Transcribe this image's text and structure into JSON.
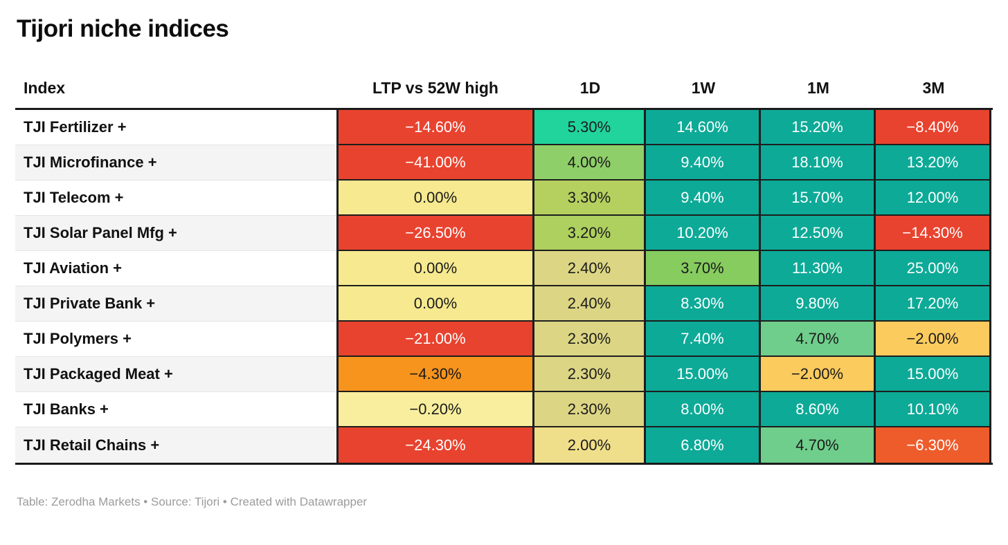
{
  "title": "Tijori niche indices",
  "footer": "Table: Zerodha Markets • Source: Tijori • Created with Datawrapper",
  "colors": {
    "red": "#e8432f",
    "orange_red": "#ee5c2c",
    "orange": "#f7941d",
    "amber": "#fbcb5e",
    "pale_yellow": "#f6e98f",
    "khaki": "#dcd584",
    "yellow_green": "#b5d05f",
    "light_green": "#8ecf69",
    "medium_green": "#6fce8b",
    "emerald": "#20d49c",
    "teal": "#0daa97",
    "dark_text": "#1a1a1a",
    "light_text": "#ffffff"
  },
  "table": {
    "columns": [
      "Index",
      "LTP vs 52W high",
      "1D",
      "1W",
      "1M",
      "3M"
    ],
    "rows": [
      {
        "index": "TJI Fertilizer +",
        "cells": [
          {
            "v": "−14.60%",
            "bg": "#e8432f",
            "fg": "#ffffff"
          },
          {
            "v": "5.30%",
            "bg": "#20d49c",
            "fg": "#1a1a1a"
          },
          {
            "v": "14.60%",
            "bg": "#0daa97",
            "fg": "#ffffff"
          },
          {
            "v": "15.20%",
            "bg": "#0daa97",
            "fg": "#ffffff"
          },
          {
            "v": "−8.40%",
            "bg": "#e8432f",
            "fg": "#ffffff"
          }
        ]
      },
      {
        "index": "TJI Microfinance +",
        "cells": [
          {
            "v": "−41.00%",
            "bg": "#e8432f",
            "fg": "#ffffff"
          },
          {
            "v": "4.00%",
            "bg": "#8ecf69",
            "fg": "#1a1a1a"
          },
          {
            "v": "9.40%",
            "bg": "#0daa97",
            "fg": "#ffffff"
          },
          {
            "v": "18.10%",
            "bg": "#0daa97",
            "fg": "#ffffff"
          },
          {
            "v": "13.20%",
            "bg": "#0daa97",
            "fg": "#ffffff"
          }
        ]
      },
      {
        "index": "TJI Telecom +",
        "cells": [
          {
            "v": "0.00%",
            "bg": "#f6e98f",
            "fg": "#1a1a1a"
          },
          {
            "v": "3.30%",
            "bg": "#b5d05f",
            "fg": "#1a1a1a"
          },
          {
            "v": "9.40%",
            "bg": "#0daa97",
            "fg": "#ffffff"
          },
          {
            "v": "15.70%",
            "bg": "#0daa97",
            "fg": "#ffffff"
          },
          {
            "v": "12.00%",
            "bg": "#0daa97",
            "fg": "#ffffff"
          }
        ]
      },
      {
        "index": "TJI Solar Panel Mfg +",
        "cells": [
          {
            "v": "−26.50%",
            "bg": "#e8432f",
            "fg": "#ffffff"
          },
          {
            "v": "3.20%",
            "bg": "#aed05f",
            "fg": "#1a1a1a"
          },
          {
            "v": "10.20%",
            "bg": "#0daa97",
            "fg": "#ffffff"
          },
          {
            "v": "12.50%",
            "bg": "#0daa97",
            "fg": "#ffffff"
          },
          {
            "v": "−14.30%",
            "bg": "#e8432f",
            "fg": "#ffffff"
          }
        ]
      },
      {
        "index": "TJI Aviation +",
        "cells": [
          {
            "v": "0.00%",
            "bg": "#f6e98f",
            "fg": "#1a1a1a"
          },
          {
            "v": "2.40%",
            "bg": "#dcd584",
            "fg": "#1a1a1a"
          },
          {
            "v": "3.70%",
            "bg": "#86cc5f",
            "fg": "#1a1a1a"
          },
          {
            "v": "11.30%",
            "bg": "#0daa97",
            "fg": "#ffffff"
          },
          {
            "v": "25.00%",
            "bg": "#0daa97",
            "fg": "#ffffff"
          }
        ]
      },
      {
        "index": "TJI Private Bank +",
        "cells": [
          {
            "v": "0.00%",
            "bg": "#f6e98f",
            "fg": "#1a1a1a"
          },
          {
            "v": "2.40%",
            "bg": "#dcd584",
            "fg": "#1a1a1a"
          },
          {
            "v": "8.30%",
            "bg": "#0daa97",
            "fg": "#ffffff"
          },
          {
            "v": "9.80%",
            "bg": "#0daa97",
            "fg": "#ffffff"
          },
          {
            "v": "17.20%",
            "bg": "#0daa97",
            "fg": "#ffffff"
          }
        ]
      },
      {
        "index": "TJI Polymers +",
        "cells": [
          {
            "v": "−21.00%",
            "bg": "#e8432f",
            "fg": "#ffffff"
          },
          {
            "v": "2.30%",
            "bg": "#dcd584",
            "fg": "#1a1a1a"
          },
          {
            "v": "7.40%",
            "bg": "#0daa97",
            "fg": "#ffffff"
          },
          {
            "v": "4.70%",
            "bg": "#6fce8b",
            "fg": "#1a1a1a"
          },
          {
            "v": "−2.00%",
            "bg": "#fbcb5e",
            "fg": "#1a1a1a"
          }
        ]
      },
      {
        "index": "TJI Packaged Meat +",
        "cells": [
          {
            "v": "−4.30%",
            "bg": "#f7941d",
            "fg": "#1a1a1a"
          },
          {
            "v": "2.30%",
            "bg": "#dcd584",
            "fg": "#1a1a1a"
          },
          {
            "v": "15.00%",
            "bg": "#0daa97",
            "fg": "#ffffff"
          },
          {
            "v": "−2.00%",
            "bg": "#fbcb5e",
            "fg": "#1a1a1a"
          },
          {
            "v": "15.00%",
            "bg": "#0daa97",
            "fg": "#ffffff"
          }
        ]
      },
      {
        "index": "TJI Banks +",
        "cells": [
          {
            "v": "−0.20%",
            "bg": "#f9ee9d",
            "fg": "#1a1a1a"
          },
          {
            "v": "2.30%",
            "bg": "#dcd584",
            "fg": "#1a1a1a"
          },
          {
            "v": "8.00%",
            "bg": "#0daa97",
            "fg": "#ffffff"
          },
          {
            "v": "8.60%",
            "bg": "#0daa97",
            "fg": "#ffffff"
          },
          {
            "v": "10.10%",
            "bg": "#0daa97",
            "fg": "#ffffff"
          }
        ]
      },
      {
        "index": "TJI Retail Chains +",
        "cells": [
          {
            "v": "−24.30%",
            "bg": "#e8432f",
            "fg": "#ffffff"
          },
          {
            "v": "2.00%",
            "bg": "#f0df8a",
            "fg": "#1a1a1a"
          },
          {
            "v": "6.80%",
            "bg": "#0daa97",
            "fg": "#ffffff"
          },
          {
            "v": "4.70%",
            "bg": "#6fce8b",
            "fg": "#1a1a1a"
          },
          {
            "v": "−6.30%",
            "bg": "#ee5c2c",
            "fg": "#ffffff"
          }
        ]
      }
    ]
  },
  "chart_data": {
    "type": "table",
    "title": "Tijori niche indices",
    "columns": [
      "Index",
      "LTP vs 52W high",
      "1D",
      "1W",
      "1M",
      "3M"
    ],
    "unit": "percent",
    "color_scale": "red-yellow-green-teal heatmap",
    "rows": [
      {
        "index": "TJI Fertilizer +",
        "ltp_vs_52w_high": -14.6,
        "d1": 5.3,
        "w1": 14.6,
        "m1": 15.2,
        "m3": -8.4
      },
      {
        "index": "TJI Microfinance +",
        "ltp_vs_52w_high": -41.0,
        "d1": 4.0,
        "w1": 9.4,
        "m1": 18.1,
        "m3": 13.2
      },
      {
        "index": "TJI Telecom +",
        "ltp_vs_52w_high": 0.0,
        "d1": 3.3,
        "w1": 9.4,
        "m1": 15.7,
        "m3": 12.0
      },
      {
        "index": "TJI Solar Panel Mfg +",
        "ltp_vs_52w_high": -26.5,
        "d1": 3.2,
        "w1": 10.2,
        "m1": 12.5,
        "m3": -14.3
      },
      {
        "index": "TJI Aviation +",
        "ltp_vs_52w_high": 0.0,
        "d1": 2.4,
        "w1": 3.7,
        "m1": 11.3,
        "m3": 25.0
      },
      {
        "index": "TJI Private Bank +",
        "ltp_vs_52w_high": 0.0,
        "d1": 2.4,
        "w1": 8.3,
        "m1": 9.8,
        "m3": 17.2
      },
      {
        "index": "TJI Polymers +",
        "ltp_vs_52w_high": -21.0,
        "d1": 2.3,
        "w1": 7.4,
        "m1": 4.7,
        "m3": -2.0
      },
      {
        "index": "TJI Packaged Meat +",
        "ltp_vs_52w_high": -4.3,
        "d1": 2.3,
        "w1": 15.0,
        "m1": -2.0,
        "m3": 15.0
      },
      {
        "index": "TJI Banks +",
        "ltp_vs_52w_high": -0.2,
        "d1": 2.3,
        "w1": 8.0,
        "m1": 8.6,
        "m3": 10.1
      },
      {
        "index": "TJI Retail Chains +",
        "ltp_vs_52w_high": -24.3,
        "d1": 2.0,
        "w1": 6.8,
        "m1": 4.7,
        "m3": -6.3
      }
    ]
  }
}
